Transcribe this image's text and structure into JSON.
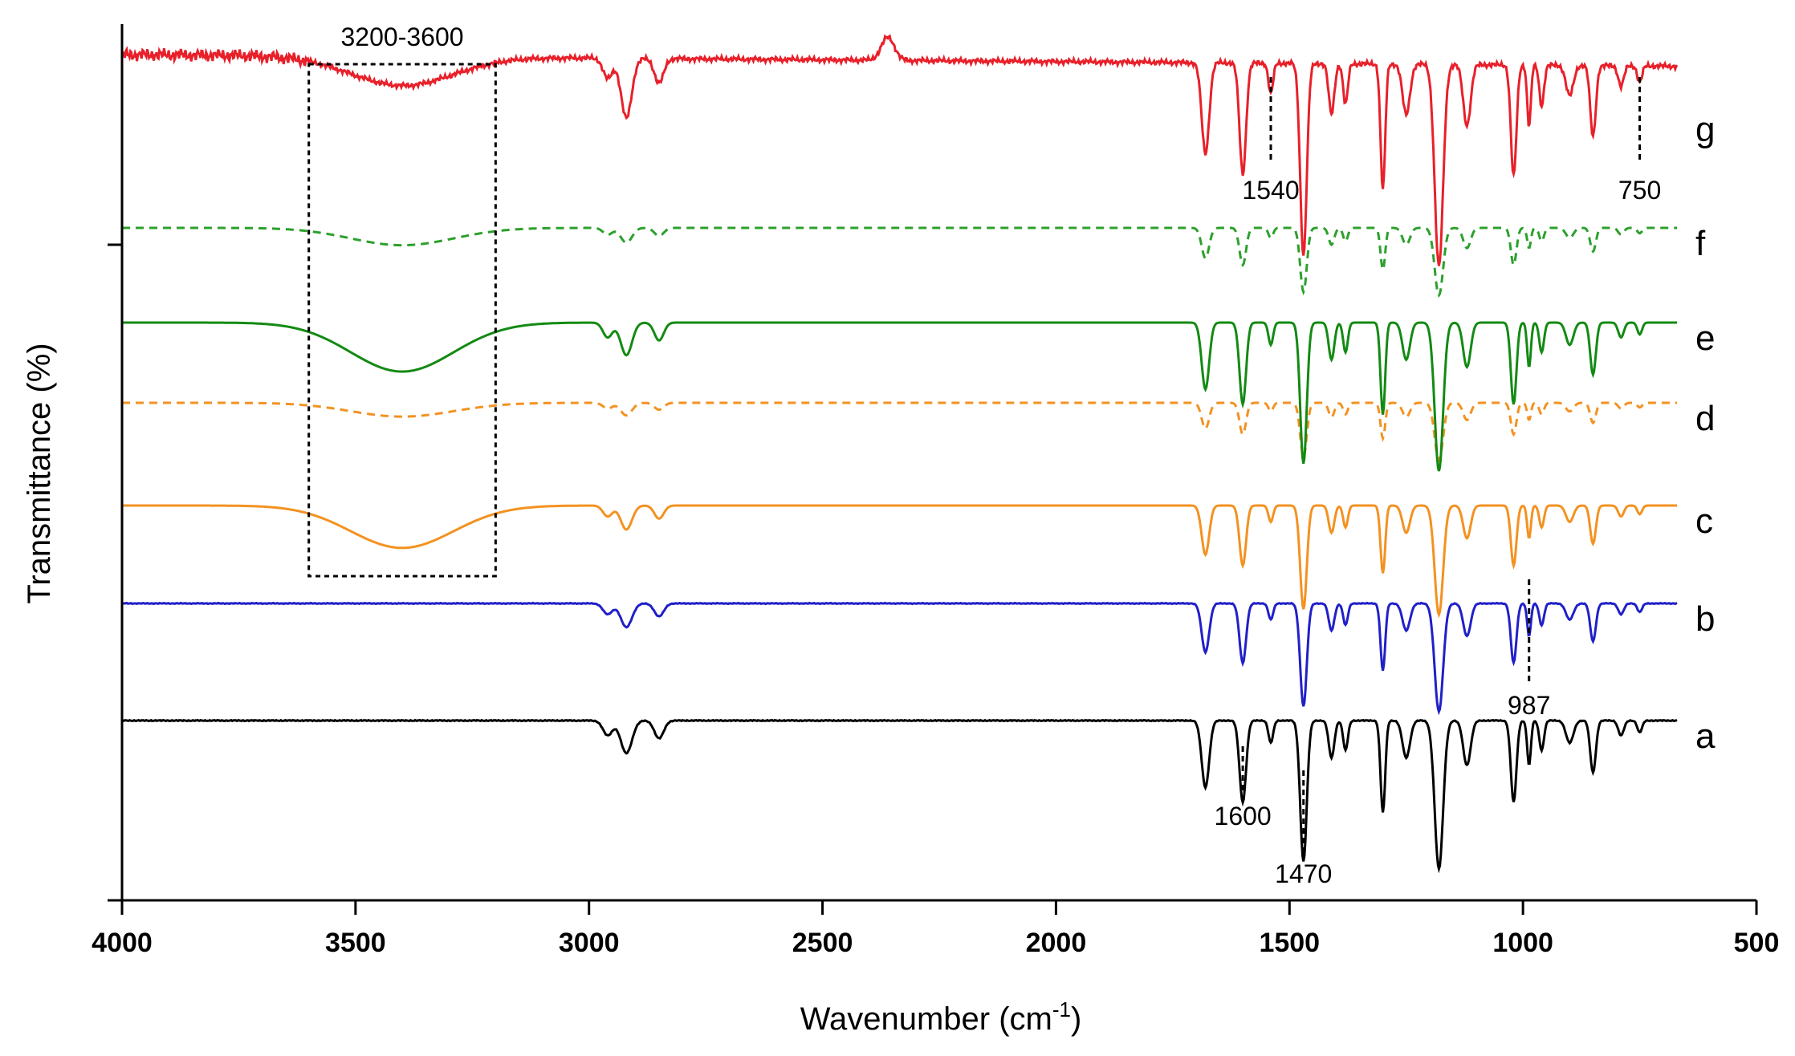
{
  "chart_data": {
    "type": "line",
    "title": "",
    "xlabel": "Wavenumber (cm",
    "xlabel_sup": "-1",
    "xlabel_close": ")",
    "ylabel": "Transmittance (%)",
    "xlim": [
      4000,
      500
    ],
    "x_ticks": [
      "4000",
      "3500",
      "3000",
      "2500",
      "2000",
      "1500",
      "1000",
      "500"
    ],
    "x_tick_values": [
      4000,
      3500,
      3000,
      2500,
      2000,
      1500,
      1000,
      500
    ],
    "series": [
      {
        "name": "a",
        "color": "#000000",
        "dash": false,
        "offset": 0.0,
        "depth": 1.0,
        "broad": 0.0,
        "ir": 0.0
      },
      {
        "name": "b",
        "color": "#2020c8",
        "dash": false,
        "offset": 1.0,
        "depth": 0.9,
        "broad": 0.0,
        "ir": 0.0
      },
      {
        "name": "c",
        "color": "#f39221",
        "dash": false,
        "offset": 2.0,
        "depth": 0.85,
        "broad": 0.55,
        "ir": 0.0
      },
      {
        "name": "d",
        "color": "#f39221",
        "dash": true,
        "offset": 3.0,
        "depth": 0.55,
        "broad": 0.22,
        "ir": 0.0
      },
      {
        "name": "e",
        "color": "#138a13",
        "dash": false,
        "offset": 4.0,
        "depth": 1.0,
        "broad": 0.55,
        "ir": 0.0
      },
      {
        "name": "f",
        "color": "#2ca02c",
        "dash": true,
        "offset": 5.0,
        "depth": 0.7,
        "broad": 0.3,
        "ir": 0.0
      },
      {
        "name": "g",
        "color": "#e8202a",
        "dash": false,
        "offset": 7.0,
        "depth": 1.05,
        "broad": 0.25,
        "ir": 1.0
      }
    ],
    "annotations": [
      {
        "label": "3200-3600",
        "type": "box",
        "x_range": [
          3600,
          3200
        ]
      },
      {
        "label": "1540",
        "type": "marker",
        "x": 1540,
        "series": "g"
      },
      {
        "label": "750",
        "type": "marker",
        "x": 750,
        "series": "g"
      },
      {
        "label": "987",
        "type": "marker",
        "x": 987,
        "series": "b"
      },
      {
        "label": "1600",
        "type": "marker",
        "x": 1600,
        "series": "a"
      },
      {
        "label": "1470",
        "type": "marker",
        "x": 1470,
        "series": "a"
      }
    ]
  }
}
